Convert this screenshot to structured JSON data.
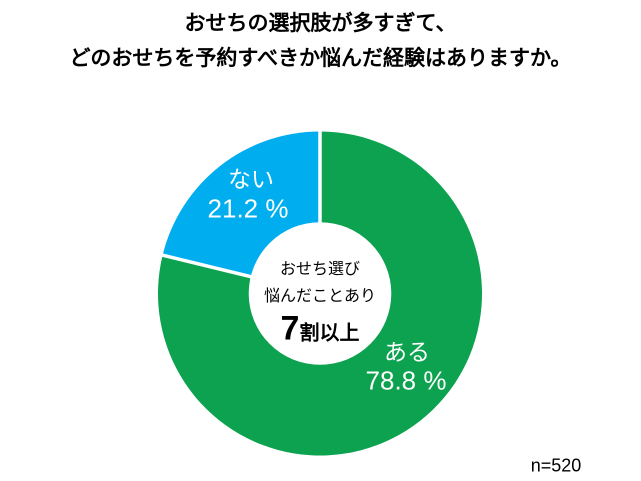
{
  "title": {
    "line1": "おせちの選択肢が多すぎて、",
    "line2": "どのおせちを予約すべきか悩んだ経験はありますか。"
  },
  "chart": {
    "center": {
      "line1": "おせち選び",
      "line2": "悩んだことあり",
      "big_number": "7",
      "big_suffix": "割以上"
    },
    "labels": {
      "yes_name": "ある",
      "yes_value": "78.8 %",
      "no_name": "ない",
      "no_value": "21.2 %"
    }
  },
  "footnote": "n=520",
  "chart_data": {
    "type": "pie",
    "subtype": "donut",
    "title": "おせちの選択肢が多すぎて、どのおせちを予約すべきか悩んだ経験はありますか。",
    "categories": [
      "ある",
      "ない"
    ],
    "values": [
      78.8,
      21.2
    ],
    "unit": "%",
    "colors": [
      "#0CA24F",
      "#00AEEF"
    ],
    "start_angle_deg": 0,
    "direction": "clockwise",
    "inner_radius_ratio": 0.44,
    "legend": "none",
    "center_annotation": "おせち選び 悩んだことあり 7割以上",
    "sample_note": "n=520"
  }
}
